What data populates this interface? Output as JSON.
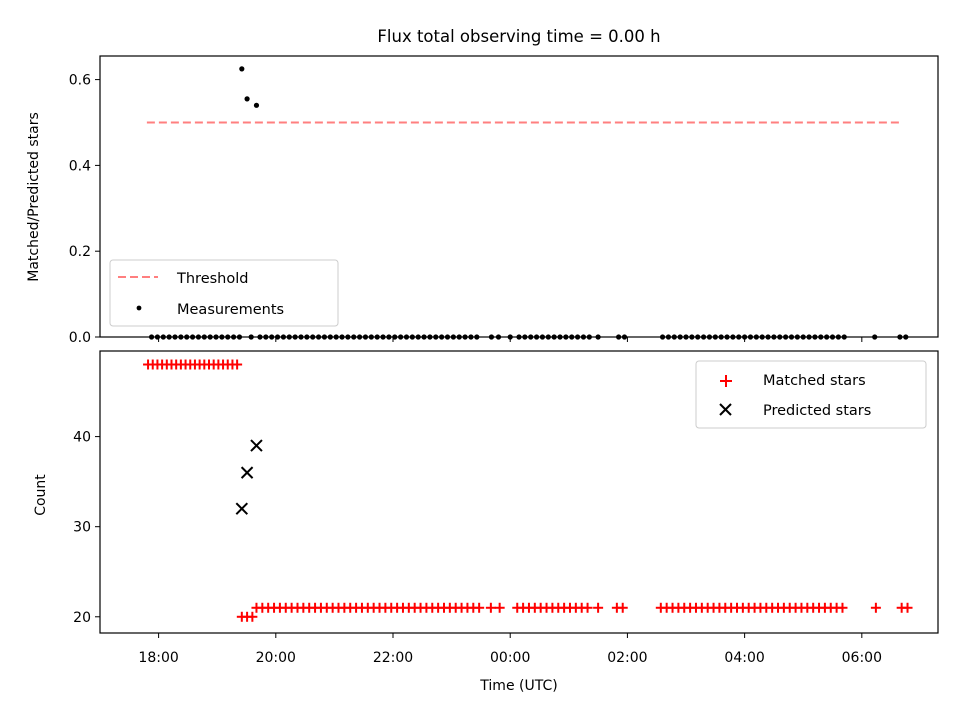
{
  "chart_data": [
    {
      "type": "scatter",
      "title": "Flux total observing time = 0.00 h",
      "xlabel": "",
      "ylabel": "Matched/Predicted stars",
      "ylim": [
        0,
        0.655
      ],
      "yticks": [
        0.0,
        0.2,
        0.4,
        0.6
      ],
      "ytick_labels": [
        "0.0",
        "0.2",
        "0.4",
        "0.6"
      ],
      "grid": false,
      "legend_position": "lower-left",
      "threshold": {
        "name": "Threshold",
        "value": 0.5,
        "color": "#ff7f7f",
        "x_start": 17.8,
        "x_end": 30.66
      },
      "series": [
        {
          "name": "Measurements",
          "color": "#000000",
          "points": [
            [
              19.42,
              0.625
            ],
            [
              19.51,
              0.555
            ],
            [
              19.67,
              0.54
            ],
            [
              17.88,
              0
            ],
            [
              17.98,
              0
            ],
            [
              18.08,
              0
            ],
            [
              18.18,
              0
            ],
            [
              18.28,
              0
            ],
            [
              18.38,
              0
            ],
            [
              18.48,
              0
            ],
            [
              18.58,
              0
            ],
            [
              18.68,
              0
            ],
            [
              18.78,
              0
            ],
            [
              18.88,
              0
            ],
            [
              18.98,
              0
            ],
            [
              19.08,
              0
            ],
            [
              19.18,
              0
            ],
            [
              19.28,
              0
            ],
            [
              19.38,
              0
            ],
            [
              19.58,
              0
            ],
            [
              19.73,
              0
            ],
            [
              19.83,
              0
            ],
            [
              19.93,
              0
            ],
            [
              20.03,
              0
            ],
            [
              20.13,
              0
            ],
            [
              20.23,
              0
            ],
            [
              20.33,
              0
            ],
            [
              20.43,
              0
            ],
            [
              20.53,
              0
            ],
            [
              20.63,
              0
            ],
            [
              20.73,
              0
            ],
            [
              20.83,
              0
            ],
            [
              20.93,
              0
            ],
            [
              21.03,
              0
            ],
            [
              21.13,
              0
            ],
            [
              21.23,
              0
            ],
            [
              21.33,
              0
            ],
            [
              21.43,
              0
            ],
            [
              21.53,
              0
            ],
            [
              21.63,
              0
            ],
            [
              21.73,
              0
            ],
            [
              21.83,
              0
            ],
            [
              21.93,
              0
            ],
            [
              22.03,
              0
            ],
            [
              22.13,
              0
            ],
            [
              22.23,
              0
            ],
            [
              22.33,
              0
            ],
            [
              22.43,
              0
            ],
            [
              22.53,
              0
            ],
            [
              22.63,
              0
            ],
            [
              22.73,
              0
            ],
            [
              22.83,
              0
            ],
            [
              22.93,
              0
            ],
            [
              23.03,
              0
            ],
            [
              23.13,
              0
            ],
            [
              23.23,
              0
            ],
            [
              23.33,
              0
            ],
            [
              23.43,
              0
            ],
            [
              23.68,
              0
            ],
            [
              23.8,
              0
            ],
            [
              24.0,
              0
            ],
            [
              24.15,
              0
            ],
            [
              24.25,
              0
            ],
            [
              24.35,
              0
            ],
            [
              24.45,
              0
            ],
            [
              24.55,
              0
            ],
            [
              24.65,
              0
            ],
            [
              24.75,
              0
            ],
            [
              24.85,
              0
            ],
            [
              24.95,
              0
            ],
            [
              25.05,
              0
            ],
            [
              25.15,
              0
            ],
            [
              25.25,
              0
            ],
            [
              25.35,
              0
            ],
            [
              25.5,
              0
            ],
            [
              25.85,
              0
            ],
            [
              25.95,
              0
            ],
            [
              26.6,
              0
            ],
            [
              26.7,
              0
            ],
            [
              26.8,
              0
            ],
            [
              26.9,
              0
            ],
            [
              27.0,
              0
            ],
            [
              27.1,
              0
            ],
            [
              27.2,
              0
            ],
            [
              27.3,
              0
            ],
            [
              27.4,
              0
            ],
            [
              27.5,
              0
            ],
            [
              27.6,
              0
            ],
            [
              27.7,
              0
            ],
            [
              27.8,
              0
            ],
            [
              27.9,
              0
            ],
            [
              28.0,
              0
            ],
            [
              28.1,
              0
            ],
            [
              28.2,
              0
            ],
            [
              28.3,
              0
            ],
            [
              28.4,
              0
            ],
            [
              28.5,
              0
            ],
            [
              28.6,
              0
            ],
            [
              28.7,
              0
            ],
            [
              28.8,
              0
            ],
            [
              28.9,
              0
            ],
            [
              29.0,
              0
            ],
            [
              29.1,
              0
            ],
            [
              29.2,
              0
            ],
            [
              29.3,
              0
            ],
            [
              29.4,
              0
            ],
            [
              29.5,
              0
            ],
            [
              29.6,
              0
            ],
            [
              29.7,
              0
            ],
            [
              30.22,
              0
            ],
            [
              30.65,
              0
            ],
            [
              30.75,
              0
            ]
          ]
        }
      ]
    },
    {
      "type": "scatter",
      "title": "",
      "xlabel": "Time (UTC)",
      "ylabel": "Count",
      "xlim": [
        17.0,
        31.3
      ],
      "ylim": [
        18.2,
        49.5
      ],
      "xticks": [
        18,
        20,
        22,
        24,
        26,
        28,
        30
      ],
      "xtick_labels": [
        "18:00",
        "20:00",
        "22:00",
        "00:00",
        "02:00",
        "04:00",
        "06:00"
      ],
      "yticks": [
        20,
        30,
        40
      ],
      "ytick_labels": [
        "20",
        "30",
        "40"
      ],
      "grid": false,
      "legend_position": "upper-right",
      "series": [
        {
          "name": "Matched stars",
          "color": "#ff0000",
          "marker": "plus",
          "points": [
            [
              17.82,
              48
            ],
            [
              17.9,
              48
            ],
            [
              17.98,
              48
            ],
            [
              18.06,
              48
            ],
            [
              18.14,
              48
            ],
            [
              18.22,
              48
            ],
            [
              18.3,
              48
            ],
            [
              18.38,
              48
            ],
            [
              18.46,
              48
            ],
            [
              18.54,
              48
            ],
            [
              18.62,
              48
            ],
            [
              18.7,
              48
            ],
            [
              18.78,
              48
            ],
            [
              18.86,
              48
            ],
            [
              18.94,
              48
            ],
            [
              19.02,
              48
            ],
            [
              19.1,
              48
            ],
            [
              19.18,
              48
            ],
            [
              19.26,
              48
            ],
            [
              19.34,
              48
            ],
            [
              19.42,
              20
            ],
            [
              19.51,
              20
            ],
            [
              19.6,
              20
            ],
            [
              19.67,
              21
            ],
            [
              19.77,
              21
            ],
            [
              19.87,
              21
            ],
            [
              19.97,
              21
            ],
            [
              20.07,
              21
            ],
            [
              20.17,
              21
            ],
            [
              20.27,
              21
            ],
            [
              20.37,
              21
            ],
            [
              20.47,
              21
            ],
            [
              20.57,
              21
            ],
            [
              20.67,
              21
            ],
            [
              20.77,
              21
            ],
            [
              20.87,
              21
            ],
            [
              20.97,
              21
            ],
            [
              21.07,
              21
            ],
            [
              21.17,
              21
            ],
            [
              21.27,
              21
            ],
            [
              21.37,
              21
            ],
            [
              21.47,
              21
            ],
            [
              21.57,
              21
            ],
            [
              21.67,
              21
            ],
            [
              21.77,
              21
            ],
            [
              21.87,
              21
            ],
            [
              21.97,
              21
            ],
            [
              22.07,
              21
            ],
            [
              22.17,
              21
            ],
            [
              22.27,
              21
            ],
            [
              22.37,
              21
            ],
            [
              22.47,
              21
            ],
            [
              22.57,
              21
            ],
            [
              22.67,
              21
            ],
            [
              22.77,
              21
            ],
            [
              22.87,
              21
            ],
            [
              22.97,
              21
            ],
            [
              23.07,
              21
            ],
            [
              23.17,
              21
            ],
            [
              23.27,
              21
            ],
            [
              23.37,
              21
            ],
            [
              23.47,
              21
            ],
            [
              23.67,
              21
            ],
            [
              23.82,
              21
            ],
            [
              24.12,
              21
            ],
            [
              24.22,
              21
            ],
            [
              24.32,
              21
            ],
            [
              24.42,
              21
            ],
            [
              24.52,
              21
            ],
            [
              24.62,
              21
            ],
            [
              24.72,
              21
            ],
            [
              24.82,
              21
            ],
            [
              24.92,
              21
            ],
            [
              25.02,
              21
            ],
            [
              25.12,
              21
            ],
            [
              25.22,
              21
            ],
            [
              25.32,
              21
            ],
            [
              25.5,
              21
            ],
            [
              25.82,
              21
            ],
            [
              25.92,
              21
            ],
            [
              26.57,
              21
            ],
            [
              26.67,
              21
            ],
            [
              26.77,
              21
            ],
            [
              26.87,
              21
            ],
            [
              26.97,
              21
            ],
            [
              27.07,
              21
            ],
            [
              27.17,
              21
            ],
            [
              27.27,
              21
            ],
            [
              27.37,
              21
            ],
            [
              27.47,
              21
            ],
            [
              27.57,
              21
            ],
            [
              27.67,
              21
            ],
            [
              27.77,
              21
            ],
            [
              27.87,
              21
            ],
            [
              27.97,
              21
            ],
            [
              28.07,
              21
            ],
            [
              28.17,
              21
            ],
            [
              28.27,
              21
            ],
            [
              28.37,
              21
            ],
            [
              28.47,
              21
            ],
            [
              28.57,
              21
            ],
            [
              28.67,
              21
            ],
            [
              28.77,
              21
            ],
            [
              28.87,
              21
            ],
            [
              28.97,
              21
            ],
            [
              29.07,
              21
            ],
            [
              29.17,
              21
            ],
            [
              29.27,
              21
            ],
            [
              29.37,
              21
            ],
            [
              29.47,
              21
            ],
            [
              29.57,
              21
            ],
            [
              29.67,
              21
            ],
            [
              30.24,
              21
            ],
            [
              30.68,
              21
            ],
            [
              30.78,
              21
            ]
          ]
        },
        {
          "name": "Predicted stars",
          "color": "#000000",
          "marker": "x",
          "points": [
            [
              19.42,
              32
            ],
            [
              19.51,
              36
            ],
            [
              19.67,
              39
            ]
          ]
        }
      ]
    }
  ]
}
